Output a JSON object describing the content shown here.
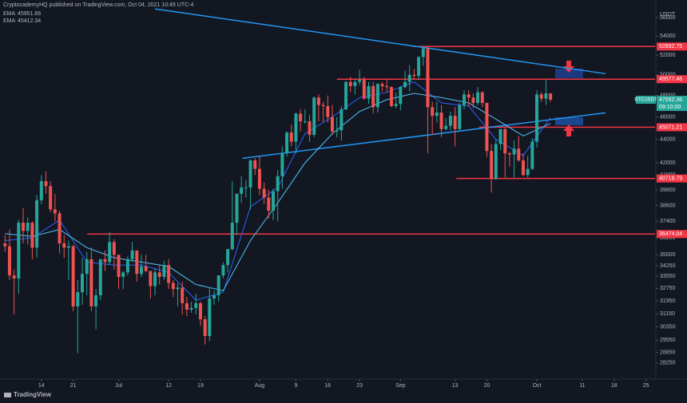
{
  "chart_data": {
    "type": "candlestick",
    "title": "CryptocademyHQ published on TradingView.com, Oct 04, 2021 10:49 UTC-4",
    "symbol": "BTCUSDT",
    "currency": "USDT",
    "last_price": 47592.36,
    "countdown": "09:10:00",
    "brand": "TradingView",
    "log_scale": true,
    "grid": false,
    "up_color": "#26a69a",
    "down_color": "#ef5350",
    "xlim": [
      -1.1,
      143
    ],
    "ylim": [
      27490,
      58000
    ],
    "xticks": [
      {
        "value": 8,
        "label": "14"
      },
      {
        "value": 15,
        "label": "21"
      },
      {
        "value": 25,
        "label": "Jul"
      },
      {
        "value": 36,
        "label": "12"
      },
      {
        "value": 43,
        "label": "19"
      },
      {
        "value": 56,
        "label": "Aug"
      },
      {
        "value": 64,
        "label": "9"
      },
      {
        "value": 71,
        "label": "16"
      },
      {
        "value": 78,
        "label": "23"
      },
      {
        "value": 87,
        "label": "Sep"
      },
      {
        "value": 99,
        "label": "13"
      },
      {
        "value": 106,
        "label": "20"
      },
      {
        "value": 117,
        "label": "Oct"
      },
      {
        "value": 127,
        "label": "11"
      },
      {
        "value": 134,
        "label": "18"
      },
      {
        "value": 141,
        "label": "25"
      }
    ],
    "yticks": [
      56000,
      54000,
      52000,
      50000,
      48000,
      46000,
      44000,
      42000,
      41000,
      39800,
      38600,
      37400,
      36200,
      35000,
      34250,
      33550,
      32750,
      31950,
      31150,
      30350,
      29550,
      28850,
      28250
    ],
    "ohlc": [
      [
        35800,
        36400,
        35200,
        35600
      ],
      [
        35600,
        36800,
        33300,
        33600
      ],
      [
        33600,
        34000,
        31100,
        33400
      ],
      [
        33400,
        37500,
        32400,
        37300
      ],
      [
        37300,
        38400,
        35800,
        36700
      ],
      [
        36700,
        37700,
        35700,
        37300
      ],
      [
        37300,
        37400,
        34700,
        35500
      ],
      [
        35500,
        39400,
        34800,
        39000
      ],
      [
        39000,
        41000,
        38700,
        40500
      ],
      [
        40500,
        41300,
        39500,
        40100
      ],
      [
        40100,
        40500,
        38100,
        38300
      ],
      [
        38300,
        39500,
        37400,
        38000
      ],
      [
        38000,
        38200,
        35100,
        35800
      ],
      [
        35800,
        36400,
        34800,
        35500
      ],
      [
        35500,
        36000,
        33300,
        35600
      ],
      [
        35600,
        35700,
        31300,
        31600
      ],
      [
        31600,
        33300,
        28800,
        32500
      ],
      [
        32500,
        34800,
        31700,
        33700
      ],
      [
        33700,
        35200,
        32300,
        34700
      ],
      [
        34700,
        35500,
        31300,
        31600
      ],
      [
        31600,
        32700,
        30200,
        32300
      ],
      [
        32300,
        34700,
        32000,
        34700
      ],
      [
        34700,
        35300,
        33900,
        34500
      ],
      [
        34500,
        36600,
        34300,
        35900
      ],
      [
        35900,
        36100,
        34000,
        35000
      ],
      [
        35000,
        35000,
        32700,
        33500
      ],
      [
        33500,
        33900,
        32700,
        33800
      ],
      [
        33800,
        34900,
        33600,
        34700
      ],
      [
        34700,
        35900,
        34500,
        35300
      ],
      [
        35300,
        35300,
        33200,
        33700
      ],
      [
        33700,
        35000,
        33500,
        34200
      ],
      [
        34200,
        35000,
        33800,
        33900
      ],
      [
        33900,
        33900,
        32100,
        32900
      ],
      [
        32900,
        34100,
        32300,
        33800
      ],
      [
        33800,
        34300,
        33000,
        33500
      ],
      [
        33500,
        34600,
        33300,
        34300
      ],
      [
        34300,
        34700,
        32700,
        33100
      ],
      [
        33100,
        33300,
        32200,
        32700
      ],
      [
        32700,
        33100,
        31600,
        32800
      ],
      [
        32800,
        33200,
        31100,
        31800
      ],
      [
        31800,
        32200,
        31000,
        31400
      ],
      [
        31400,
        31900,
        31200,
        31500
      ],
      [
        31500,
        32400,
        31100,
        31800
      ],
      [
        31800,
        31900,
        30400,
        30800
      ],
      [
        30800,
        31000,
        29300,
        29800
      ],
      [
        29800,
        32800,
        29500,
        32100
      ],
      [
        32100,
        32600,
        31700,
        32300
      ],
      [
        32300,
        33600,
        31900,
        33600
      ],
      [
        33600,
        34500,
        33400,
        34300
      ],
      [
        34300,
        35400,
        33800,
        35400
      ],
      [
        35400,
        40500,
        35300,
        37300
      ],
      [
        37300,
        39500,
        36400,
        39500
      ],
      [
        39500,
        40900,
        38800,
        40000
      ],
      [
        40000,
        40600,
        39200,
        40000
      ],
      [
        40000,
        42300,
        38300,
        42200
      ],
      [
        42200,
        42400,
        41000,
        41500
      ],
      [
        41500,
        42600,
        39400,
        39900
      ],
      [
        39900,
        40400,
        38700,
        39200
      ],
      [
        39200,
        39800,
        37600,
        38200
      ],
      [
        38200,
        39900,
        37500,
        39700
      ],
      [
        39700,
        41400,
        37400,
        40900
      ],
      [
        40900,
        43400,
        39900,
        42800
      ],
      [
        42800,
        44700,
        42500,
        44600
      ],
      [
        44600,
        45300,
        43400,
        43800
      ],
      [
        43800,
        46400,
        42800,
        46300
      ],
      [
        46300,
        46700,
        44700,
        45600
      ],
      [
        45600,
        46700,
        45400,
        45600
      ],
      [
        45600,
        46200,
        43800,
        44400
      ],
      [
        44400,
        47900,
        44200,
        47800
      ],
      [
        47800,
        48100,
        45600,
        47100
      ],
      [
        47100,
        47400,
        45500,
        47000
      ],
      [
        47000,
        48000,
        45500,
        46000
      ],
      [
        46000,
        47100,
        44400,
        44700
      ],
      [
        44700,
        46000,
        44200,
        44800
      ],
      [
        44800,
        47000,
        43900,
        46700
      ],
      [
        46700,
        49400,
        46600,
        49300
      ],
      [
        49300,
        49800,
        48300,
        48900
      ],
      [
        48900,
        49500,
        48100,
        49300
      ],
      [
        49300,
        50500,
        49000,
        49500
      ],
      [
        49500,
        49800,
        47600,
        47700
      ],
      [
        47700,
        49300,
        47200,
        48900
      ],
      [
        48900,
        49300,
        46300,
        46900
      ],
      [
        46900,
        49200,
        46400,
        49100
      ],
      [
        49100,
        49300,
        48400,
        48900
      ],
      [
        48900,
        49600,
        48300,
        48800
      ],
      [
        48800,
        48900,
        46900,
        47000
      ],
      [
        47000,
        48300,
        46800,
        47200
      ],
      [
        47200,
        48900,
        46600,
        48800
      ],
      [
        48800,
        50400,
        48700,
        49300
      ],
      [
        49300,
        51000,
        48400,
        50000
      ],
      [
        50000,
        50600,
        49500,
        49900
      ],
      [
        49900,
        51900,
        49500,
        51800
      ],
      [
        51800,
        52900,
        50900,
        52700
      ],
      [
        52700,
        52900,
        42800,
        46900
      ],
      [
        46900,
        47400,
        44400,
        46100
      ],
      [
        46100,
        47400,
        45500,
        46400
      ],
      [
        46400,
        47100,
        44200,
        44900
      ],
      [
        44900,
        45900,
        44800,
        45200
      ],
      [
        45200,
        46500,
        44800,
        46100
      ],
      [
        46100,
        46900,
        43400,
        44900
      ],
      [
        44900,
        47300,
        44700,
        47100
      ],
      [
        47100,
        48500,
        46700,
        48100
      ],
      [
        48100,
        48500,
        47000,
        47800
      ],
      [
        47800,
        48200,
        46800,
        47300
      ],
      [
        47300,
        48800,
        47100,
        48300
      ],
      [
        48300,
        48400,
        46900,
        47300
      ],
      [
        47300,
        47300,
        42500,
        43000
      ],
      [
        43000,
        43600,
        39600,
        40700
      ],
      [
        40700,
        44000,
        40600,
        43600
      ],
      [
        43600,
        44900,
        43100,
        44900
      ],
      [
        44900,
        45000,
        40800,
        42800
      ],
      [
        42800,
        42900,
        41700,
        42700
      ],
      [
        42700,
        43900,
        40800,
        43200
      ],
      [
        43200,
        44300,
        42100,
        42200
      ],
      [
        42200,
        42800,
        40900,
        41000
      ],
      [
        41000,
        42600,
        40800,
        41500
      ],
      [
        41500,
        44100,
        41400,
        43800
      ],
      [
        43800,
        48500,
        43300,
        48100
      ],
      [
        48100,
        48300,
        47400,
        47700
      ],
      [
        47700,
        49500,
        47100,
        48200
      ],
      [
        48200,
        48200,
        47400,
        47600
      ]
    ],
    "series": [
      {
        "name": "EMA",
        "color": "#2962ff",
        "last": 45951.66,
        "x": [
          0,
          6,
          12,
          18,
          24,
          30,
          36,
          42,
          48,
          54,
          60,
          66,
          72,
          78,
          84,
          90,
          96,
          102,
          108,
          114,
          120
        ],
        "values": [
          36000,
          36200,
          37500,
          34500,
          34300,
          34300,
          33800,
          32000,
          32500,
          38500,
          40000,
          44500,
          46000,
          47800,
          48300,
          49300,
          47300,
          47000,
          44000,
          42600,
          45950
        ]
      },
      {
        "name": "EMA",
        "color": "#4fc3f7",
        "last": 45412.34,
        "x": [
          0,
          6,
          12,
          18,
          24,
          30,
          36,
          42,
          48,
          54,
          60,
          66,
          72,
          78,
          84,
          90,
          96,
          102,
          108,
          114,
          120
        ],
        "values": [
          36500,
          36300,
          36800,
          35500,
          34800,
          34500,
          34200,
          33000,
          32600,
          36000,
          38800,
          42000,
          44500,
          46500,
          47600,
          48200,
          47800,
          47300,
          45800,
          44300,
          45410
        ]
      }
    ],
    "trendlines": [
      {
        "color": "#2196f3",
        "x": [
          33,
          132.1
        ],
        "values": [
          56990,
          50120
        ]
      },
      {
        "color": "#2196f3",
        "x": [
          52.2,
          132.1
        ],
        "values": [
          42380,
          46380
        ]
      }
    ],
    "levels": [
      {
        "value": 52892.75,
        "start": 89.7,
        "color": "#f23645"
      },
      {
        "value": 49577.46,
        "start": 73,
        "color": "#f23645"
      },
      {
        "value": 45071.21,
        "start": 104.3,
        "color": "#f23645"
      },
      {
        "value": 40718.79,
        "start": 99.3,
        "color": "#f23645"
      },
      {
        "value": 36474.04,
        "start": 18.1,
        "color": "#f23645"
      }
    ]
  }
}
